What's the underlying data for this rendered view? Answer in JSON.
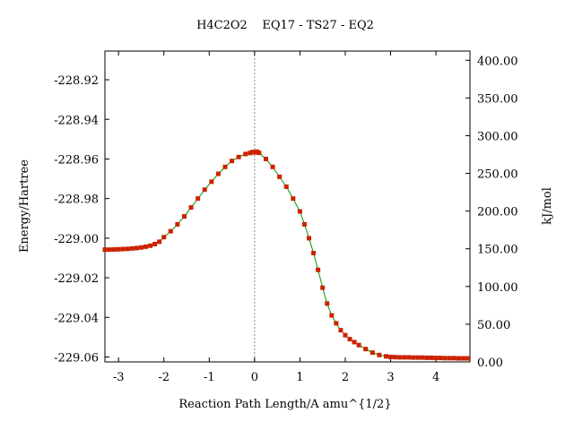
{
  "chart_data": {
    "type": "line",
    "title": "H4C2O2    EQ17 - TS27 - EQ2",
    "xlabel": "Reaction Path Length/A amu^{1/2}",
    "ylabel": "Energy/Hartree",
    "y2label": "kJ/mol",
    "xlim": [
      -3.3,
      4.75
    ],
    "ylim": [
      -229.0625,
      -228.9055
    ],
    "y2lim": [
      0,
      412.2
    ],
    "x_ticks": [
      -3,
      -2,
      -1,
      0,
      1,
      2,
      3,
      4
    ],
    "y_ticks": [
      -229.06,
      -229.04,
      -229.02,
      -229.0,
      -228.98,
      -228.96,
      -228.94,
      -228.92
    ],
    "y_tick_labels": [
      "-229.06",
      "-229.04",
      "-229.02",
      "-229.00",
      "-228.98",
      "-228.96",
      "-228.94",
      "-228.92"
    ],
    "y2_ticks": [
      0,
      50,
      100,
      150,
      200,
      250,
      300,
      350,
      400
    ],
    "y2_tick_labels": [
      "0.00",
      "50.00",
      "100.00",
      "150.00",
      "200.00",
      "250.00",
      "300.00",
      "350.00",
      "400.00"
    ],
    "ts_marker_x": 0,
    "colors": {
      "line": "#009900",
      "point": "#cc2200",
      "ts_line": "#888888"
    },
    "series": [
      {
        "x": [
          -3.3,
          -3.2,
          -3.1,
          -3.0,
          -2.9,
          -2.8,
          -2.7,
          -2.6,
          -2.5,
          -2.4,
          -2.3,
          -2.2,
          -2.1,
          -2.0,
          -1.85,
          -1.7,
          -1.55,
          -1.4,
          -1.25,
          -1.1,
          -0.95,
          -0.8,
          -0.65,
          -0.5,
          -0.35,
          -0.2,
          -0.1,
          -0.05,
          0.0,
          0.05,
          0.1,
          0.25,
          0.4,
          0.55,
          0.7,
          0.85,
          1.0,
          1.1,
          1.2,
          1.3,
          1.4,
          1.5,
          1.6,
          1.7,
          1.8,
          1.9,
          2.0,
          2.1,
          2.2,
          2.3,
          2.45,
          2.6,
          2.75,
          2.9,
          3.0,
          3.1,
          3.2,
          3.3,
          3.4,
          3.5,
          3.6,
          3.7,
          3.8,
          3.9,
          4.0,
          4.1,
          4.2,
          4.3,
          4.4,
          4.5,
          4.6,
          4.7
        ],
        "y": [
          -229.0058,
          -229.0058,
          -229.0057,
          -229.0056,
          -229.0055,
          -229.0054,
          -229.0052,
          -229.005,
          -229.0047,
          -229.0043,
          -229.0038,
          -229.003,
          -229.0018,
          -228.9995,
          -228.9965,
          -228.993,
          -228.989,
          -228.9845,
          -228.98,
          -228.9755,
          -228.9715,
          -228.9675,
          -228.964,
          -228.961,
          -228.959,
          -228.9575,
          -228.957,
          -228.9565,
          -228.9567,
          -228.9563,
          -228.9569,
          -228.96,
          -228.964,
          -228.969,
          -228.974,
          -228.98,
          -228.9865,
          -228.993,
          -229.0,
          -229.0075,
          -229.016,
          -229.025,
          -229.033,
          -229.039,
          -229.043,
          -229.0465,
          -229.049,
          -229.051,
          -229.0525,
          -229.054,
          -229.056,
          -229.0578,
          -229.059,
          -229.0597,
          -229.06,
          -229.0601,
          -229.0602,
          -229.0602,
          -229.0602,
          -229.0603,
          -229.0603,
          -229.0603,
          -229.0604,
          -229.0604,
          -229.0605,
          -229.0605,
          -229.0606,
          -229.0606,
          -229.0606,
          -229.0607,
          -229.0607,
          -229.0607
        ]
      }
    ]
  }
}
